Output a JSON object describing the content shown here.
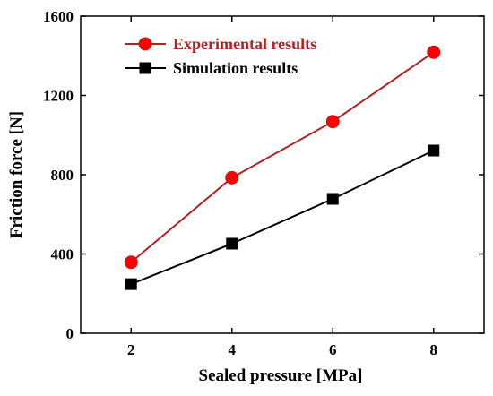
{
  "chart_data": {
    "type": "line",
    "xlabel": "Sealed pressure [MPa]",
    "ylabel": "Friction force [N]",
    "xlim": [
      1,
      9
    ],
    "ylim": [
      0,
      1600
    ],
    "xticks": [
      2,
      4,
      6,
      8
    ],
    "yticks": [
      0,
      400,
      800,
      1200,
      1600
    ],
    "grid": false,
    "legend_position": "top-left",
    "x": [
      2,
      4,
      6,
      8
    ],
    "series": [
      {
        "name": "Experimental results",
        "values": [
          358,
          785,
          1068,
          1418
        ],
        "color": "#b22222",
        "marker": "circle",
        "marker_color": "#ff0000"
      },
      {
        "name": "Simulation results",
        "values": [
          248,
          452,
          678,
          922
        ],
        "color": "#000000",
        "marker": "square",
        "marker_color": "#000000"
      }
    ]
  }
}
